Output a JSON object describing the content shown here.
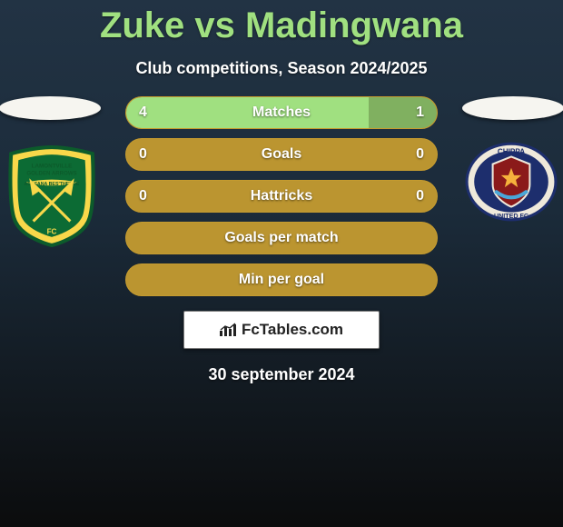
{
  "title": "Zuke vs Madingwana",
  "subtitle": "Club competitions, Season 2024/2025",
  "date": "30 september 2024",
  "rows": [
    {
      "label": "Matches",
      "left": "4",
      "right": "1",
      "leftPct": 78,
      "rightPct": 22,
      "showVals": true
    },
    {
      "label": "Goals",
      "left": "0",
      "right": "0",
      "leftPct": 0,
      "rightPct": 0,
      "showVals": true
    },
    {
      "label": "Hattricks",
      "left": "0",
      "right": "0",
      "leftPct": 0,
      "rightPct": 0,
      "showVals": true
    },
    {
      "label": "Goals per match",
      "left": "",
      "right": "",
      "leftPct": 0,
      "rightPct": 0,
      "showVals": false
    },
    {
      "label": "Min per goal",
      "left": "",
      "right": "",
      "leftPct": 0,
      "rightPct": 0,
      "showVals": false
    }
  ],
  "colors": {
    "title": "#a0e080",
    "rowBase": "#bb9530",
    "rowBorder": "#c59b2f",
    "fillLeft": "#a0e080",
    "fillRight": "#80b060",
    "ellipse": "#f6f5f0"
  },
  "icons": {
    "fc": "FcTables.com",
    "leftBadge": "golden-arrows-badge",
    "rightBadge": "chippa-united-badge"
  }
}
